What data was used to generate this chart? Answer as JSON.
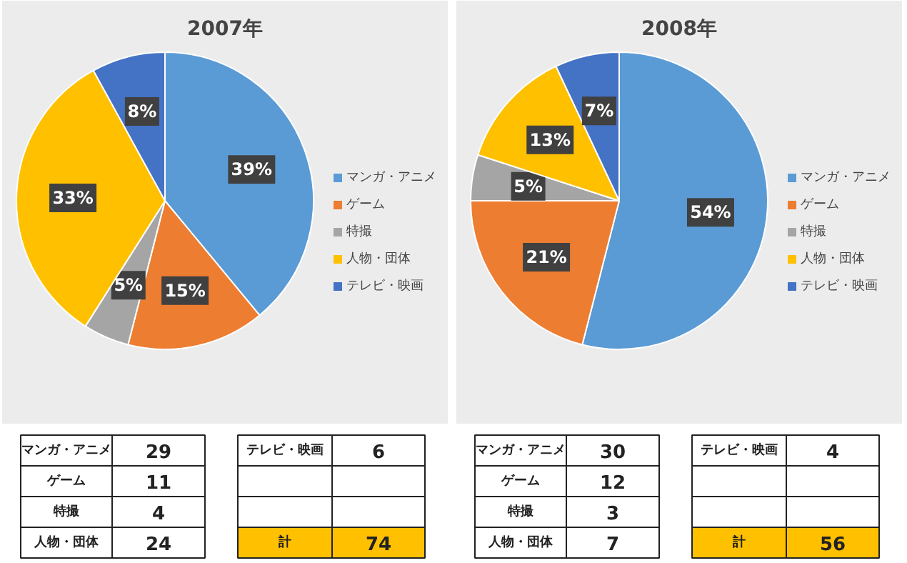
{
  "chart_data": [
    {
      "type": "pie",
      "title": "2007年",
      "categories": [
        "マンガ・アニメ",
        "ゲーム",
        "特撮",
        "人物・団体",
        "テレビ・映画"
      ],
      "values": [
        39,
        15,
        5,
        33,
        8
      ],
      "colors": [
        "#5b9bd5",
        "#ed7d31",
        "#a5a5a5",
        "#ffc000",
        "#4472c4"
      ],
      "value_labels": [
        "39%",
        "15%",
        "5%",
        "33%",
        "8%"
      ],
      "totals": [
        "74"
      ],
      "annotations": [
        "29",
        "11",
        "4",
        "24",
        "6",
        "計"
      ],
      "legend": "right"
    },
    {
      "type": "pie",
      "title": "2008年",
      "categories": [
        "マンガ・アニメ",
        "ゲーム",
        "特撮",
        "人物・団体",
        "テレビ・映画"
      ],
      "values": [
        54,
        21,
        5,
        13,
        7
      ],
      "colors": [
        "#5b9bd5",
        "#ed7d31",
        "#a5a5a5",
        "#ffc000",
        "#4472c4"
      ],
      "value_labels": [
        "54%",
        "21%",
        "5%",
        "13%",
        "7%"
      ],
      "totals": [
        "56"
      ],
      "annotations": [
        "30",
        "12",
        "3",
        "7",
        "4",
        "計"
      ],
      "legend": "right"
    }
  ]
}
